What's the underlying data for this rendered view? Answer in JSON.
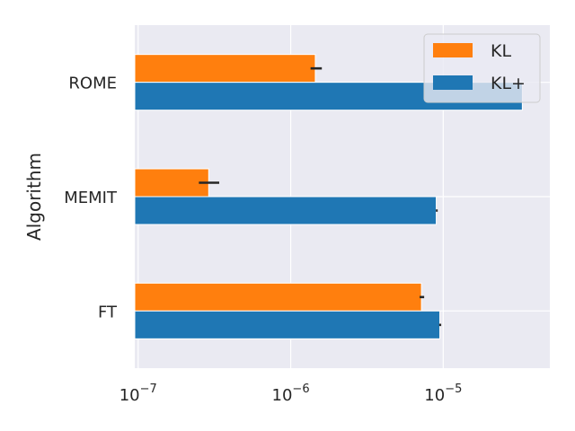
{
  "chart_data": {
    "type": "bar",
    "orientation": "horizontal",
    "xscale": "log",
    "xlim": [
      9.5e-08,
      5e-05
    ],
    "x_ticks": [
      {
        "value": 1e-07,
        "base": "10",
        "exp": "−7"
      },
      {
        "value": 1e-06,
        "base": "10",
        "exp": "−6"
      },
      {
        "value": 1e-05,
        "base": "10",
        "exp": "−5"
      }
    ],
    "ylabel": "Algorithm",
    "xlabel": "",
    "categories": [
      "ROME",
      "MEMIT",
      "FT"
    ],
    "series": [
      {
        "name": "KL",
        "color": "#ff7f0e",
        "values": [
          1.45e-06,
          2.9e-07,
          7.2e-06
        ],
        "err_low": [
          1.35e-06,
          2.5e-07,
          7e-06
        ],
        "err_high": [
          1.6e-06,
          3.4e-07,
          7.5e-06
        ]
      },
      {
        "name": "KL+",
        "color": "#1f77b4",
        "values": [
          3.3e-05,
          9e-06,
          9.5e-06
        ],
        "err_low": [
          3.3e-05,
          8.95e-06,
          9.4e-06
        ],
        "err_high": [
          3.3e-05,
          9.2e-06,
          9.7e-06
        ]
      }
    ],
    "grid": true,
    "legend_position": "top-right",
    "background": "#eaeaf2"
  }
}
